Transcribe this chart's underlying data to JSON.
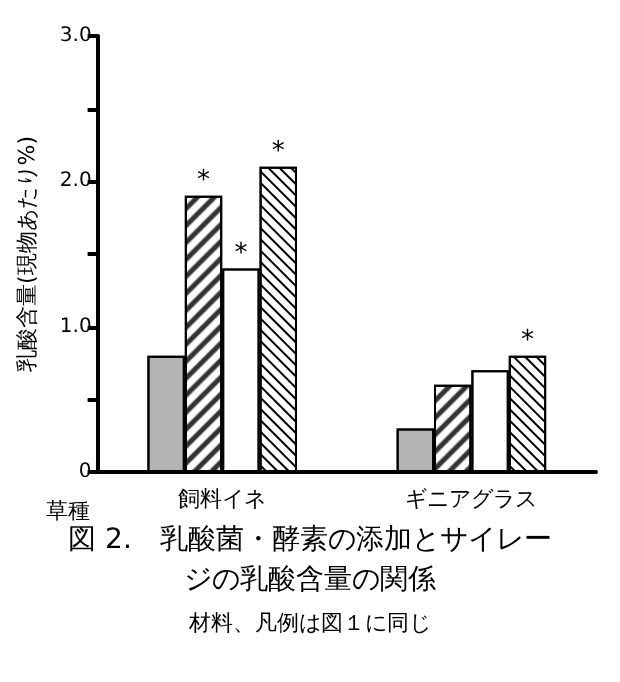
{
  "chart_data": {
    "type": "bar",
    "title": "図 2.　乳酸菌・酵素の添加とサイレージの乳酸含量の関係",
    "subtitle": "材料、凡例は図１に同じ",
    "xlabel": "草種",
    "ylabel": "乳酸含量(現物あたり%)",
    "categories": [
      "飼料イネ",
      "ギニアグラス"
    ],
    "series": [
      {
        "color": "#b4b4b4",
        "values": [
          0.8,
          0.3
        ]
      },
      {
        "color": "#ffffff",
        "values": [
          1.9,
          0.6
        ],
        "value_labels": [
          "*",
          null
        ]
      },
      {
        "color": "#ffffff",
        "values": [
          1.4,
          0.7
        ],
        "value_labels": [
          "*",
          null
        ]
      },
      {
        "color": "#ffffff",
        "values": [
          2.1,
          0.8
        ],
        "value_labels": [
          "*",
          "*"
        ]
      }
    ],
    "ylim": [
      0,
      3
    ],
    "yticks": [
      0,
      {
        "value": 0.5,
        "label": null
      },
      {
        "value": 1,
        "label": "1.0"
      },
      {
        "value": 1.5,
        "label": null
      },
      {
        "value": 2,
        "label": "2.0"
      },
      {
        "value": 2.5,
        "label": null
      },
      {
        "value": 3,
        "label": "3.0"
      }
    ],
    "grid": false
  }
}
